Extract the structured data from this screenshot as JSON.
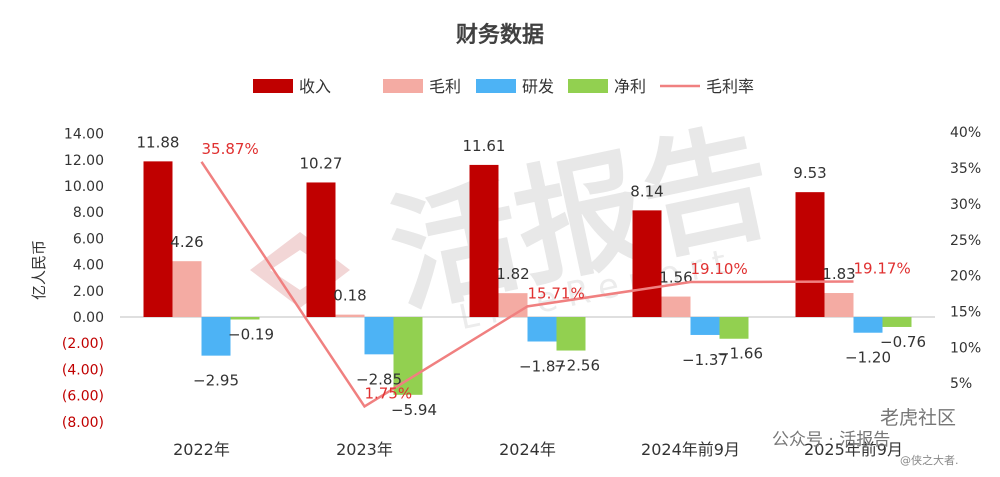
{
  "chart_data": {
    "type": "bar",
    "title": "财务数据",
    "ylabel": "亿人民币",
    "categories": [
      "2022年",
      "2023年",
      "2024年",
      "2024年前9月",
      "2025年前9月"
    ],
    "y_ticks": [
      "14.00",
      "12.00",
      "10.00",
      "8.00",
      "6.00",
      "4.00",
      "2.00",
      "0.00",
      "(2.00)",
      "(4.00)",
      "(6.00)",
      "(8.00)"
    ],
    "y2_ticks": [
      "40%",
      "35%",
      "30%",
      "25%",
      "20%",
      "15%",
      "10%",
      "5%"
    ],
    "ylim": [
      -8,
      14
    ],
    "y2lim": [
      0,
      40
    ],
    "legend_position": "top",
    "grid": false,
    "series": [
      {
        "name": "收入",
        "kind": "bar",
        "color": "#c00000",
        "values": [
          11.88,
          10.27,
          11.61,
          8.14,
          9.53
        ],
        "labels": [
          "11.88",
          "10.27",
          "11.61",
          "8.14",
          "9.53"
        ]
      },
      {
        "name": "毛利",
        "kind": "bar",
        "color": "#f4aba3",
        "values": [
          4.26,
          0.18,
          1.82,
          1.56,
          1.83
        ],
        "labels": [
          "4.26",
          "0.18",
          "1.82",
          "1.56",
          "1.83"
        ]
      },
      {
        "name": "研发",
        "kind": "bar",
        "color": "#4db3f5",
        "values": [
          -2.95,
          -2.85,
          -1.87,
          -1.37,
          -1.2
        ],
        "labels": [
          "−2.95",
          "−2.85",
          "−1.87",
          "−1.37",
          "−1.20"
        ]
      },
      {
        "name": "净利",
        "kind": "bar",
        "color": "#92d050",
        "values": [
          -0.19,
          -5.94,
          -2.56,
          -1.66,
          -0.76
        ],
        "labels": [
          "−0.19",
          "−5.94",
          "−2.56",
          "−1.66",
          "−0.76"
        ]
      },
      {
        "name": "毛利率",
        "kind": "line",
        "axis": "right",
        "color": "#f08080",
        "values": [
          35.87,
          1.75,
          15.71,
          19.1,
          19.17
        ],
        "labels": [
          "35.87%",
          "1.75%",
          "15.71%",
          "19.10%",
          "19.17%"
        ]
      }
    ]
  },
  "watermarks": {
    "center": "活报告",
    "center_sub": "LiveReport",
    "bottom_right_1": "老虎社区",
    "bottom_right_2": "公众号 · 活报告",
    "bottom_right_3": "@侠之大者."
  }
}
